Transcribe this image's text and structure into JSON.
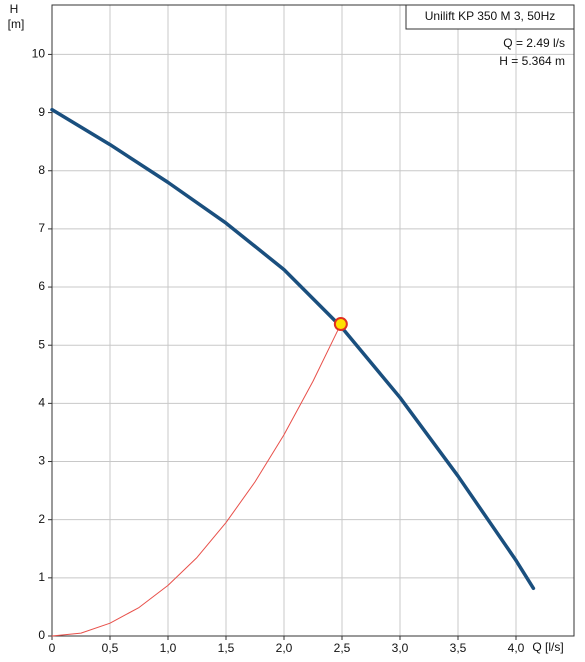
{
  "chart_data": {
    "type": "line",
    "title": "Unilift KP 350 M 3, 50Hz",
    "annotations": [
      "Q = 2.49 l/s",
      "H = 5.364 m"
    ],
    "x_label": "Q [l/s]",
    "y_label": [
      "H",
      "[m]"
    ],
    "xlim": [
      0,
      4.5
    ],
    "ylim": [
      0,
      10.85
    ],
    "xticks": [
      0,
      {
        "value": 0.5,
        "label": "0,5"
      },
      {
        "value": 1,
        "label": "1,0"
      },
      {
        "value": 1.5,
        "label": "1,5"
      },
      {
        "value": 2,
        "label": "2,0"
      },
      {
        "value": 2.5,
        "label": "2,5"
      },
      {
        "value": 3,
        "label": "3,0"
      },
      {
        "value": 3.5,
        "label": "3,5"
      },
      {
        "value": 4,
        "label": "4,0"
      }
    ],
    "yticks": [
      0,
      1,
      2,
      3,
      4,
      5,
      6,
      7,
      8,
      9,
      10
    ],
    "grid": true,
    "series": [
      {
        "color": "#1a4f7e",
        "x": [
          0,
          0.5,
          1.0,
          1.5,
          2.0,
          2.5,
          3.0,
          3.5,
          4.0,
          4.15
        ],
        "values": [
          9.05,
          8.45,
          7.8,
          7.1,
          6.3,
          5.3,
          4.1,
          2.75,
          1.3,
          0.82
        ]
      },
      {
        "color": "#e8504a",
        "x": [
          0,
          0.25,
          0.5,
          0.75,
          1.0,
          1.25,
          1.5,
          1.75,
          2.0,
          2.25,
          2.49
        ],
        "values": [
          0,
          0.05,
          0.22,
          0.49,
          0.87,
          1.35,
          1.95,
          2.65,
          3.46,
          4.38,
          5.364
        ]
      }
    ],
    "point": {
      "x": 2.49,
      "y": 5.364,
      "color": "#ffe000",
      "stroke": "#e03020"
    }
  }
}
